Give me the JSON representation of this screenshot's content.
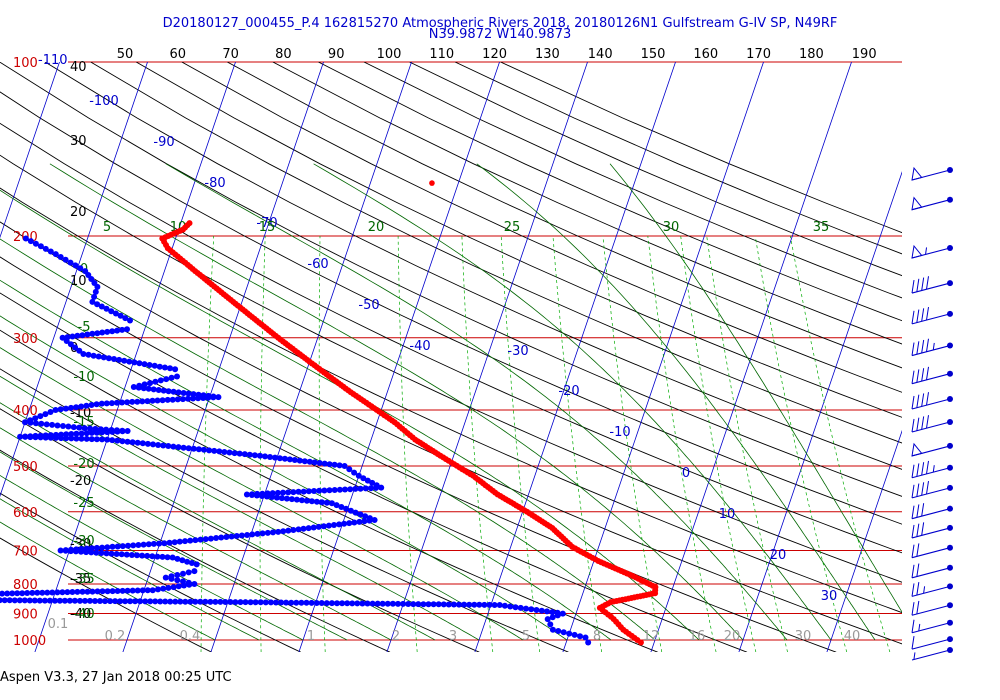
{
  "header": {
    "line1": "D20180127_000455_P.4 162815270 Atmospheric Rivers 2018, 20180126N1 Gulfstream G-IV SP, N49RF",
    "line2": "N39.9872 W140.9873"
  },
  "footer": {
    "text": "Aspen V3.3, 27 Jan 2018  00:25 UTC"
  },
  "colors": {
    "isobar": "#cc0000",
    "isotherm": "#0000cc",
    "dry_adiabat": "#000000",
    "moist_adiabat": "#006600",
    "mixing_ratio": "#00aa00",
    "temperature": "#ff0000",
    "dewpoint": "#0000ff"
  },
  "chart_data": {
    "type": "scatter",
    "title": "D20180127_000455_P.4 162815270 Atmospheric Rivers 2018, 20180126N1 Gulfstream G-IV SP, N49RF",
    "subtitle": "N39.9872 W140.9873",
    "y_axis": {
      "pressure_scale": "log",
      "pressure_ticks_hPa": [
        "100",
        "200",
        "300",
        "400",
        "500",
        "600",
        "700",
        "800",
        "900",
        "1000"
      ],
      "height_ticks": [
        "40",
        "30",
        "20",
        "10",
        "0",
        "-10",
        "-20",
        "-30",
        "-35",
        "-40"
      ],
      "top_temperature_label": "-110",
      "ylim_hPa": [
        100,
        1030
      ]
    },
    "top_axis_labels": [
      "50",
      "60",
      "70",
      "80",
      "90",
      "100",
      "110",
      "120",
      "130",
      "140",
      "150",
      "160",
      "170",
      "180",
      "190"
    ],
    "isotherm_labels": [
      "-100",
      "-90",
      "-80",
      "-70",
      "-60",
      "-50",
      "-40",
      "-30",
      "-20",
      "-10",
      "0",
      "10",
      "20",
      "30"
    ],
    "moist_adiabat_labels_top": [
      "5",
      "10",
      "15",
      "20",
      "25",
      "30",
      "35"
    ],
    "moist_adiabat_labels_left": [
      "0",
      "-5",
      "-10",
      "-15",
      "-20",
      "-25",
      "-30",
      "-35",
      "-40"
    ],
    "mixing_ratio_labels": [
      "0.1",
      "0.2",
      "0.4",
      "1",
      "2",
      "3",
      "5",
      "8",
      "12",
      "16",
      "20",
      "30",
      "40"
    ],
    "grid": true,
    "series": [
      {
        "name": "temperature",
        "color": "#ff0000",
        "points": [
          {
            "p": 190,
            "t": -59.0
          },
          {
            "p": 195,
            "t": -59.5
          },
          {
            "p": 202,
            "t": -61.5
          },
          {
            "p": 210,
            "t": -60.5
          },
          {
            "p": 230,
            "t": -56.5
          },
          {
            "p": 260,
            "t": -51.0
          },
          {
            "p": 300,
            "t": -44.5
          },
          {
            "p": 330,
            "t": -40.0
          },
          {
            "p": 370,
            "t": -34.5
          },
          {
            "p": 420,
            "t": -28.0
          },
          {
            "p": 450,
            "t": -25.0
          },
          {
            "p": 480,
            "t": -21.5
          },
          {
            "p": 520,
            "t": -17.0
          },
          {
            "p": 560,
            "t": -13.5
          },
          {
            "p": 600,
            "t": -9.5
          },
          {
            "p": 640,
            "t": -6.0
          },
          {
            "p": 690,
            "t": -3.0
          },
          {
            "p": 730,
            "t": 0.5
          },
          {
            "p": 775,
            "t": 5.0
          },
          {
            "p": 810,
            "t": 8.0
          },
          {
            "p": 830,
            "t": 8.2
          },
          {
            "p": 860,
            "t": 3.5
          },
          {
            "p": 880,
            "t": 2.5
          },
          {
            "p": 920,
            "t": 4.5
          },
          {
            "p": 960,
            "t": 6.0
          },
          {
            "p": 1000,
            "t": 8.0
          },
          {
            "p": 1010,
            "t": 8.5
          }
        ]
      },
      {
        "name": "dewpoint",
        "color": "#0000ff",
        "points": [
          {
            "p": 202,
            "t": -77.0
          },
          {
            "p": 215,
            "t": -73.0
          },
          {
            "p": 230,
            "t": -69.0
          },
          {
            "p": 245,
            "t": -67.0
          },
          {
            "p": 260,
            "t": -67.0
          },
          {
            "p": 280,
            "t": -62.0
          },
          {
            "p": 290,
            "t": -62.0
          },
          {
            "p": 300,
            "t": -69.0
          },
          {
            "p": 320,
            "t": -66.0
          },
          {
            "p": 340,
            "t": -55.0
          },
          {
            "p": 350,
            "t": -54.5
          },
          {
            "p": 365,
            "t": -59.0
          },
          {
            "p": 380,
            "t": -49.0
          },
          {
            "p": 390,
            "t": -62.0
          },
          {
            "p": 400,
            "t": -67.0
          },
          {
            "p": 420,
            "t": -70.0
          },
          {
            "p": 430,
            "t": -63.0
          },
          {
            "p": 435,
            "t": -58.0
          },
          {
            "p": 445,
            "t": -70.0
          },
          {
            "p": 450,
            "t": -60.0
          },
          {
            "p": 480,
            "t": -42.0
          },
          {
            "p": 500,
            "t": -32.0
          },
          {
            "p": 520,
            "t": -30.0
          },
          {
            "p": 545,
            "t": -27.0
          },
          {
            "p": 560,
            "t": -42.0
          },
          {
            "p": 580,
            "t": -32.0
          },
          {
            "p": 620,
            "t": -26.5
          },
          {
            "p": 650,
            "t": -37.0
          },
          {
            "p": 680,
            "t": -49.5
          },
          {
            "p": 700,
            "t": -61.0
          },
          {
            "p": 720,
            "t": -48.0
          },
          {
            "p": 740,
            "t": -45.0
          },
          {
            "p": 760,
            "t": -45.0
          },
          {
            "p": 780,
            "t": -48.0
          },
          {
            "p": 800,
            "t": -44.5
          },
          {
            "p": 820,
            "t": -49.0
          },
          {
            "p": 840,
            "t": -79.0
          },
          {
            "p": 848,
            "t": -90.0
          },
          {
            "p": 860,
            "t": -38.0
          },
          {
            "p": 870,
            "t": -9.0
          },
          {
            "p": 900,
            "t": -1.5
          },
          {
            "p": 920,
            "t": -3.0
          },
          {
            "p": 960,
            "t": -2.0
          },
          {
            "p": 990,
            "t": 2.0
          },
          {
            "p": 1010,
            "t": 2.5
          }
        ]
      },
      {
        "name": "isolated-point",
        "color": "#ff0000",
        "points": [
          {
            "p": 162,
            "t": -33.0
          }
        ]
      }
    ],
    "wind_barbs": [
      {
        "p": 130,
        "speed_kt": 50
      },
      {
        "p": 165,
        "speed_kt": 50
      },
      {
        "p": 200,
        "speed_kt": 55
      },
      {
        "p": 230,
        "speed_kt": 40
      },
      {
        "p": 260,
        "speed_kt": 40
      },
      {
        "p": 295,
        "speed_kt": 45
      },
      {
        "p": 330,
        "speed_kt": 40
      },
      {
        "p": 365,
        "speed_kt": 40
      },
      {
        "p": 400,
        "speed_kt": 40
      },
      {
        "p": 440,
        "speed_kt": 50
      },
      {
        "p": 480,
        "speed_kt": 45
      },
      {
        "p": 520,
        "speed_kt": 40
      },
      {
        "p": 565,
        "speed_kt": 30
      },
      {
        "p": 610,
        "speed_kt": 30
      },
      {
        "p": 660,
        "speed_kt": 20
      },
      {
        "p": 715,
        "speed_kt": 20
      },
      {
        "p": 770,
        "speed_kt": 25
      },
      {
        "p": 830,
        "speed_kt": 20
      },
      {
        "p": 890,
        "speed_kt": 15
      },
      {
        "p": 950,
        "speed_kt": 10
      },
      {
        "p": 1010,
        "speed_kt": 5
      }
    ]
  }
}
